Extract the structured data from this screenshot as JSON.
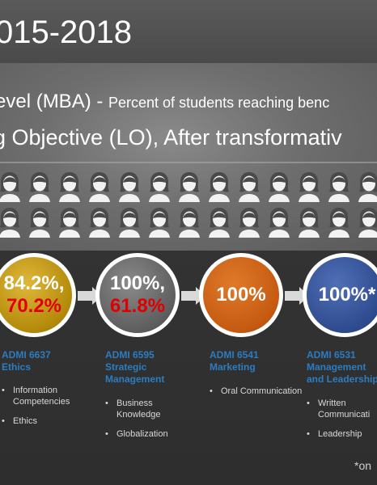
{
  "title": "015-2018",
  "subtitle_line1_main": "evel (MBA) - ",
  "subtitle_line1_small": "Percent of students reaching benc",
  "subtitle_line2": "g Objective (LO), After transformativ",
  "colors": {
    "gold": "#c29a0f",
    "gray": "#666666",
    "orange": "#c55a11",
    "blue": "#2f4b8f",
    "red": "#e00000",
    "course_blue": "#2c7cc0"
  },
  "courses": [
    {
      "pct_line1": "84.2%,",
      "pct_line2": "70.2%",
      "name_line1": "ADMI 6637",
      "name_line2": "Ethics",
      "name_line3": "",
      "bullets": [
        "Information Competencies",
        "Ethics"
      ]
    },
    {
      "pct_line1": "100%,",
      "pct_line2": "61.8%",
      "name_line1": "ADMI 6595",
      "name_line2": "Strategic",
      "name_line3": "Management",
      "bullets": [
        "Business Knowledge",
        "Globalization"
      ]
    },
    {
      "pct_line1": "100%",
      "pct_line2": "",
      "name_line1": "ADMI 6541",
      "name_line2": "Marketing",
      "name_line3": "",
      "bullets": [
        "Oral Communication"
      ]
    },
    {
      "pct_line1": "100%*",
      "pct_line2": "",
      "name_line1": "ADMI 6531",
      "name_line2": "Management",
      "name_line3": "and Leadership",
      "bullets": [
        "Written Communicati",
        "Leadership"
      ]
    }
  ],
  "footnote": "*on"
}
